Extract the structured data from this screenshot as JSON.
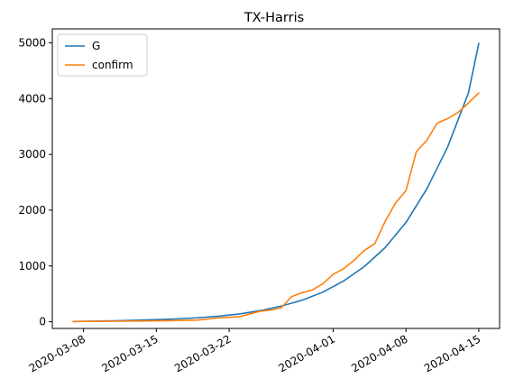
{
  "chart_data": {
    "type": "line",
    "title": "TX-Harris",
    "xlabel": "",
    "ylabel": "",
    "x_type": "date",
    "xlim": [
      "2020-03-05",
      "2020-04-17"
    ],
    "ylim": [
      -120,
      5250
    ],
    "grid": false,
    "legend_position": "top-left",
    "x_ticks": [
      "2020-03-08",
      "2020-03-15",
      "2020-03-22",
      "2020-04-01",
      "2020-04-08",
      "2020-04-15"
    ],
    "y_ticks": [
      0,
      1000,
      2000,
      3000,
      4000,
      5000
    ],
    "series": [
      {
        "name": "G",
        "color": "#1f77b4",
        "points": [
          [
            "2020-03-07",
            5
          ],
          [
            "2020-03-09",
            10
          ],
          [
            "2020-03-11",
            17
          ],
          [
            "2020-03-13",
            27
          ],
          [
            "2020-03-15",
            38
          ],
          [
            "2020-03-17",
            52
          ],
          [
            "2020-03-19",
            72
          ],
          [
            "2020-03-21",
            100
          ],
          [
            "2020-03-23",
            140
          ],
          [
            "2020-03-25",
            200
          ],
          [
            "2020-03-27",
            280
          ],
          [
            "2020-03-29",
            385
          ],
          [
            "2020-03-31",
            530
          ],
          [
            "2020-04-02",
            730
          ],
          [
            "2020-04-04",
            990
          ],
          [
            "2020-04-06",
            1330
          ],
          [
            "2020-04-08",
            1780
          ],
          [
            "2020-04-10",
            2380
          ],
          [
            "2020-04-12",
            3130
          ],
          [
            "2020-04-14",
            4100
          ],
          [
            "2020-04-15",
            4990
          ]
        ]
      },
      {
        "name": "confirm",
        "color": "#ff7f0e",
        "points": [
          [
            "2020-03-07",
            5
          ],
          [
            "2020-03-10",
            8
          ],
          [
            "2020-03-13",
            12
          ],
          [
            "2020-03-16",
            18
          ],
          [
            "2020-03-19",
            30
          ],
          [
            "2020-03-20",
            50
          ],
          [
            "2020-03-21",
            70
          ],
          [
            "2020-03-22",
            80
          ],
          [
            "2020-03-23",
            90
          ],
          [
            "2020-03-24",
            140
          ],
          [
            "2020-03-25",
            190
          ],
          [
            "2020-03-26",
            210
          ],
          [
            "2020-03-27",
            250
          ],
          [
            "2020-03-28",
            450
          ],
          [
            "2020-03-29",
            520
          ],
          [
            "2020-03-30",
            570
          ],
          [
            "2020-03-31",
            680
          ],
          [
            "2020-04-01",
            850
          ],
          [
            "2020-04-02",
            950
          ],
          [
            "2020-04-03",
            1100
          ],
          [
            "2020-04-04",
            1280
          ],
          [
            "2020-04-05",
            1400
          ],
          [
            "2020-04-06",
            1800
          ],
          [
            "2020-04-07",
            2130
          ],
          [
            "2020-04-08",
            2350
          ],
          [
            "2020-04-09",
            3050
          ],
          [
            "2020-04-10",
            3250
          ],
          [
            "2020-04-11",
            3560
          ],
          [
            "2020-04-12",
            3640
          ],
          [
            "2020-04-13",
            3750
          ],
          [
            "2020-04-14",
            3920
          ],
          [
            "2020-04-15",
            4100
          ]
        ]
      }
    ]
  }
}
